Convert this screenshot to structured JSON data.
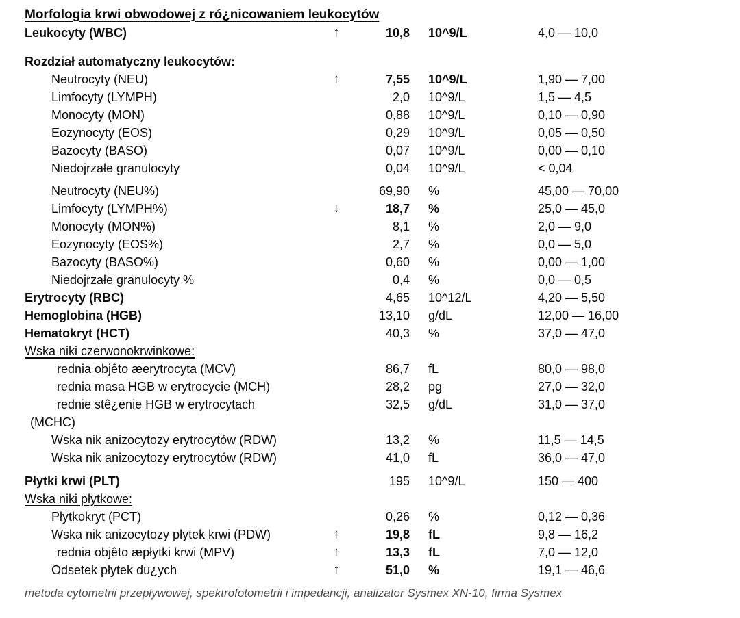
{
  "title": "Morfologia krwi obwodowej z ró¿nicowaniem leukocytów",
  "footer_note": "metoda cytometrii przepływowej, spektrofotometrii i impedancji, analizator Sysmex XN-10, firma Sysmex",
  "flags": {
    "high": "↑",
    "low": "↓"
  },
  "chart_data": {
    "type": "table",
    "columns": [
      "parameter",
      "flag",
      "value",
      "unit",
      "reference_range"
    ]
  },
  "rows": [
    {
      "name": "Leukocyty (WBC)",
      "b": true,
      "ind": 0,
      "flag": "↑",
      "value": "10,8",
      "unit": "10^9/L",
      "vb": true,
      "range": "4,0 — 10,0",
      "gap": 0
    },
    {
      "type": "header",
      "name": "Rozdział automatyczny leukocytów:",
      "b": true,
      "ind": 0,
      "flag": "",
      "value": "",
      "unit": "",
      "range": "",
      "gap": 16
    },
    {
      "name": "Neutrocyty (NEU)",
      "ind": 1,
      "flag": "↑",
      "value": "7,55",
      "unit": "10^9/L",
      "vb": true,
      "range": "1,90 — 7,00",
      "gap": 0
    },
    {
      "name": "Limfocyty (LYMPH)",
      "ind": 1,
      "flag": "",
      "value": "2,0",
      "unit": "10^9/L",
      "range": "1,5 — 4,5",
      "gap": 0
    },
    {
      "name": "Monocyty (MON)",
      "ind": 1,
      "flag": "",
      "value": "0,88",
      "unit": "10^9/L",
      "range": "0,10 — 0,90",
      "gap": 0
    },
    {
      "name": "Eozynocyty (EOS)",
      "ind": 1,
      "flag": "",
      "value": "0,29",
      "unit": "10^9/L",
      "range": "0,05 — 0,50",
      "gap": 0
    },
    {
      "name": "Bazocyty (BASO)",
      "ind": 1,
      "flag": "",
      "value": "0,07",
      "unit": "10^9/L",
      "range": "0,00 — 0,10",
      "gap": 0
    },
    {
      "name": "Niedojrzałe granulocyty",
      "ind": 1,
      "flag": "",
      "value": "0,04",
      "unit": "10^9/L",
      "range": "< 0,04",
      "gap": 0
    },
    {
      "name": "Neutrocyty (NEU%)",
      "ind": 1,
      "flag": "",
      "value": "69,90",
      "unit": "%",
      "range": "45,00 — 70,00",
      "gap": 7
    },
    {
      "name": "Limfocyty (LYMPH%)",
      "ind": 1,
      "flag": "↓",
      "value": "18,7",
      "unit": "%",
      "vb": true,
      "range": "25,0 — 45,0",
      "gap": 0
    },
    {
      "name": "Monocyty (MON%)",
      "ind": 1,
      "flag": "",
      "value": "8,1",
      "unit": "%",
      "range": "2,0 — 9,0",
      "gap": 0
    },
    {
      "name": "Eozynocyty (EOS%)",
      "ind": 1,
      "flag": "",
      "value": "2,7",
      "unit": "%",
      "range": "0,0 — 5,0",
      "gap": 0
    },
    {
      "name": "Bazocyty (BASO%)",
      "ind": 1,
      "flag": "",
      "value": "0,60",
      "unit": "%",
      "range": "0,00 — 1,00",
      "gap": 0
    },
    {
      "name": "Niedojrzałe granulocyty %",
      "ind": 1,
      "flag": "",
      "value": "0,4",
      "unit": "%",
      "range": "0,0 — 0,5",
      "gap": 0
    },
    {
      "name": "Erytrocyty (RBC)",
      "b": true,
      "ind": 0,
      "flag": "",
      "value": "4,65",
      "unit": "10^12/L",
      "range": "4,20 — 5,50",
      "gap": 0
    },
    {
      "name": "Hemoglobina (HGB)",
      "b": true,
      "ind": 0,
      "flag": "",
      "value": "13,10",
      "unit": "g/dL",
      "range": "12,00 — 16,00",
      "gap": 0
    },
    {
      "name": "Hematokryt (HCT)",
      "b": true,
      "ind": 0,
      "flag": "",
      "value": "40,3",
      "unit": "%",
      "range": "37,0 — 47,0",
      "gap": 0
    },
    {
      "type": "header",
      "name": "Wska niki czerwonokrwinkowe:",
      "u": true,
      "ind": 0,
      "flag": "",
      "value": "",
      "unit": "",
      "range": "",
      "gap": 0
    },
    {
      "name": "rednia objêto  æerytrocyta (MCV)",
      "ind": 2,
      "flag": "",
      "value": "86,7",
      "unit": "fL",
      "range": "80,0 — 98,0",
      "gap": 0
    },
    {
      "name": "rednia masa HGB w erytrocycie (MCH)",
      "ind": 2,
      "flag": "",
      "value": "28,2",
      "unit": "pg",
      "range": "27,0 — 32,0",
      "gap": 0
    },
    {
      "name": "rednie stê¿enie HGB w erytrocytach",
      "ind": 2,
      "flag": "",
      "value": "32,5",
      "unit": "g/dL",
      "range": "31,0 — 37,0",
      "gap": 0
    },
    {
      "type": "subline",
      "name": "(MCHC)",
      "ind": 3,
      "flag": "",
      "value": "",
      "unit": "",
      "range": "",
      "gap": 0
    },
    {
      "name": "Wska nik anizocytozy erytrocytów (RDW)",
      "ind": 1,
      "flag": "",
      "value": "13,2",
      "unit": "%",
      "range": "11,5 — 14,5",
      "gap": 0
    },
    {
      "name": "Wska nik anizocytozy erytrocytów (RDW)",
      "ind": 1,
      "flag": "",
      "value": "41,0",
      "unit": "fL",
      "range": "36,0 — 47,0",
      "gap": 0
    },
    {
      "name": "Płytki krwi (PLT)",
      "b": true,
      "ind": 0,
      "flag": "",
      "value": "195",
      "unit": "10^9/L",
      "range": "150 — 400",
      "gap": 8
    },
    {
      "type": "header",
      "name": "Wska niki płytkowe:",
      "u": true,
      "ind": 0,
      "flag": "",
      "value": "",
      "unit": "",
      "range": "",
      "gap": 0
    },
    {
      "name": "Płytkokryt (PCT)",
      "ind": 1,
      "flag": "",
      "value": "0,26",
      "unit": "%",
      "range": "0,12 — 0,36",
      "gap": 0
    },
    {
      "name": "Wska nik anizocytozy płytek krwi (PDW)",
      "ind": 1,
      "flag": "↑",
      "value": "19,8",
      "unit": "fL",
      "vb": true,
      "range": "9,8 — 16,2",
      "gap": 0
    },
    {
      "name": "rednia objêto  æpłytki krwi (MPV)",
      "ind": 2,
      "flag": "↑",
      "value": "13,3",
      "unit": "fL",
      "vb": true,
      "range": "7,0 — 12,0",
      "gap": 0
    },
    {
      "name": "Odsetek płytek du¿ych",
      "ind": 1,
      "flag": "↑",
      "value": "51,0",
      "unit": "%",
      "vb": true,
      "range": "19,1 — 46,6",
      "gap": 0
    }
  ]
}
